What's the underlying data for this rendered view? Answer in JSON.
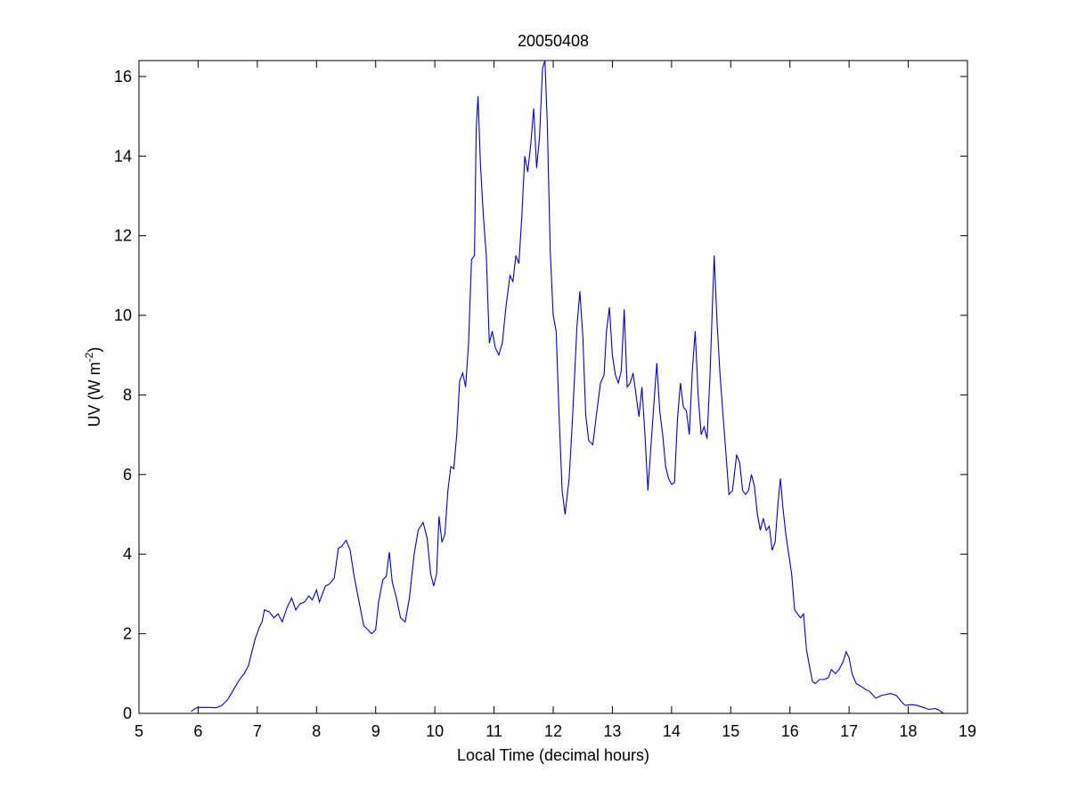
{
  "chart_data": {
    "type": "line",
    "title": "20050408",
    "xlabel": "Local Time (decimal hours)",
    "ylabel": {
      "main": "UV (W m",
      "superscript": "-2",
      "close": ")"
    },
    "xlim": [
      5,
      19
    ],
    "ylim": [
      0,
      16.4
    ],
    "xticks": [
      "5",
      "6",
      "7",
      "8",
      "9",
      "10",
      "11",
      "12",
      "13",
      "14",
      "15",
      "16",
      "17",
      "18",
      "19"
    ],
    "yticks": [
      "0",
      "2",
      "4",
      "6",
      "8",
      "10",
      "12",
      "14",
      "16"
    ],
    "grid": false,
    "legend": "none",
    "series": [
      {
        "color": "#0000cc",
        "points": [
          [
            5.88,
            0.05
          ],
          [
            5.95,
            0.12
          ],
          [
            6.0,
            0.15
          ],
          [
            6.1,
            0.15
          ],
          [
            6.2,
            0.15
          ],
          [
            6.3,
            0.14
          ],
          [
            6.4,
            0.2
          ],
          [
            6.5,
            0.35
          ],
          [
            6.6,
            0.6
          ],
          [
            6.7,
            0.85
          ],
          [
            6.78,
            1.0
          ],
          [
            6.85,
            1.2
          ],
          [
            6.9,
            1.5
          ],
          [
            6.97,
            1.9
          ],
          [
            7.03,
            2.15
          ],
          [
            7.08,
            2.3
          ],
          [
            7.12,
            2.6
          ],
          [
            7.2,
            2.55
          ],
          [
            7.28,
            2.4
          ],
          [
            7.35,
            2.5
          ],
          [
            7.42,
            2.3
          ],
          [
            7.5,
            2.65
          ],
          [
            7.58,
            2.9
          ],
          [
            7.65,
            2.6
          ],
          [
            7.72,
            2.75
          ],
          [
            7.8,
            2.8
          ],
          [
            7.87,
            2.95
          ],
          [
            7.93,
            2.85
          ],
          [
            8.0,
            3.1
          ],
          [
            8.05,
            2.8
          ],
          [
            8.1,
            3.0
          ],
          [
            8.15,
            3.2
          ],
          [
            8.22,
            3.25
          ],
          [
            8.3,
            3.4
          ],
          [
            8.37,
            4.15
          ],
          [
            8.43,
            4.2
          ],
          [
            8.5,
            4.35
          ],
          [
            8.57,
            4.1
          ],
          [
            8.63,
            3.5
          ],
          [
            8.72,
            2.8
          ],
          [
            8.8,
            2.2
          ],
          [
            8.87,
            2.1
          ],
          [
            8.93,
            2.0
          ],
          [
            9.0,
            2.1
          ],
          [
            9.05,
            2.8
          ],
          [
            9.12,
            3.35
          ],
          [
            9.18,
            3.45
          ],
          [
            9.23,
            4.05
          ],
          [
            9.28,
            3.3
          ],
          [
            9.35,
            2.9
          ],
          [
            9.42,
            2.4
          ],
          [
            9.5,
            2.3
          ],
          [
            9.57,
            2.9
          ],
          [
            9.65,
            4.0
          ],
          [
            9.72,
            4.6
          ],
          [
            9.8,
            4.8
          ],
          [
            9.87,
            4.4
          ],
          [
            9.93,
            3.5
          ],
          [
            9.98,
            3.2
          ],
          [
            10.03,
            3.5
          ],
          [
            10.07,
            4.95
          ],
          [
            10.12,
            4.3
          ],
          [
            10.17,
            4.5
          ],
          [
            10.22,
            5.6
          ],
          [
            10.27,
            6.2
          ],
          [
            10.32,
            6.15
          ],
          [
            10.37,
            7.0
          ],
          [
            10.42,
            8.35
          ],
          [
            10.47,
            8.55
          ],
          [
            10.52,
            8.2
          ],
          [
            10.57,
            9.3
          ],
          [
            10.62,
            11.4
          ],
          [
            10.67,
            11.5
          ],
          [
            10.7,
            14.7
          ],
          [
            10.73,
            15.5
          ],
          [
            10.77,
            13.8
          ],
          [
            10.82,
            12.5
          ],
          [
            10.87,
            11.5
          ],
          [
            10.92,
            9.3
          ],
          [
            10.97,
            9.6
          ],
          [
            11.02,
            9.2
          ],
          [
            11.08,
            9.0
          ],
          [
            11.14,
            9.3
          ],
          [
            11.2,
            10.2
          ],
          [
            11.27,
            11.0
          ],
          [
            11.32,
            10.85
          ],
          [
            11.37,
            11.5
          ],
          [
            11.42,
            11.3
          ],
          [
            11.47,
            12.5
          ],
          [
            11.52,
            14.0
          ],
          [
            11.57,
            13.6
          ],
          [
            11.62,
            14.3
          ],
          [
            11.67,
            15.2
          ],
          [
            11.72,
            13.7
          ],
          [
            11.77,
            14.5
          ],
          [
            11.82,
            16.2
          ],
          [
            11.86,
            16.4
          ],
          [
            11.9,
            14.8
          ],
          [
            11.95,
            11.6
          ],
          [
            12.0,
            10.0
          ],
          [
            12.05,
            9.6
          ],
          [
            12.1,
            7.5
          ],
          [
            12.15,
            5.6
          ],
          [
            12.2,
            5.0
          ],
          [
            12.27,
            5.9
          ],
          [
            12.33,
            7.5
          ],
          [
            12.4,
            9.7
          ],
          [
            12.45,
            10.6
          ],
          [
            12.5,
            9.5
          ],
          [
            12.55,
            7.5
          ],
          [
            12.6,
            6.85
          ],
          [
            12.67,
            6.75
          ],
          [
            12.73,
            7.5
          ],
          [
            12.8,
            8.3
          ],
          [
            12.86,
            8.5
          ],
          [
            12.9,
            9.6
          ],
          [
            12.95,
            10.2
          ],
          [
            13.0,
            9.0
          ],
          [
            13.05,
            8.5
          ],
          [
            13.1,
            8.3
          ],
          [
            13.15,
            8.6
          ],
          [
            13.2,
            10.15
          ],
          [
            13.25,
            8.2
          ],
          [
            13.3,
            8.3
          ],
          [
            13.35,
            8.55
          ],
          [
            13.4,
            8.0
          ],
          [
            13.45,
            7.45
          ],
          [
            13.5,
            8.2
          ],
          [
            13.55,
            7.0
          ],
          [
            13.6,
            5.6
          ],
          [
            13.67,
            7.1
          ],
          [
            13.75,
            8.8
          ],
          [
            13.8,
            7.6
          ],
          [
            13.85,
            7.0
          ],
          [
            13.9,
            6.2
          ],
          [
            13.95,
            5.9
          ],
          [
            14.0,
            5.75
          ],
          [
            14.05,
            5.8
          ],
          [
            14.1,
            7.4
          ],
          [
            14.15,
            8.3
          ],
          [
            14.2,
            7.7
          ],
          [
            14.25,
            7.6
          ],
          [
            14.3,
            7.0
          ],
          [
            14.35,
            8.6
          ],
          [
            14.4,
            9.6
          ],
          [
            14.45,
            8.0
          ],
          [
            14.5,
            7.0
          ],
          [
            14.55,
            7.2
          ],
          [
            14.6,
            6.9
          ],
          [
            14.65,
            8.5
          ],
          [
            14.72,
            11.5
          ],
          [
            14.77,
            9.8
          ],
          [
            14.82,
            8.5
          ],
          [
            14.87,
            7.5
          ],
          [
            14.92,
            6.5
          ],
          [
            14.97,
            5.5
          ],
          [
            15.03,
            5.6
          ],
          [
            15.1,
            6.5
          ],
          [
            15.15,
            6.3
          ],
          [
            15.2,
            5.6
          ],
          [
            15.25,
            5.5
          ],
          [
            15.3,
            5.6
          ],
          [
            15.35,
            6.0
          ],
          [
            15.4,
            5.7
          ],
          [
            15.45,
            5.0
          ],
          [
            15.5,
            4.6
          ],
          [
            15.55,
            4.9
          ],
          [
            15.6,
            4.6
          ],
          [
            15.65,
            4.7
          ],
          [
            15.7,
            4.1
          ],
          [
            15.75,
            4.3
          ],
          [
            15.8,
            5.3
          ],
          [
            15.84,
            5.9
          ],
          [
            15.88,
            5.2
          ],
          [
            15.93,
            4.5
          ],
          [
            15.98,
            4.0
          ],
          [
            16.03,
            3.5
          ],
          [
            16.08,
            2.6
          ],
          [
            16.13,
            2.5
          ],
          [
            16.18,
            2.4
          ],
          [
            16.23,
            2.5
          ],
          [
            16.28,
            1.6
          ],
          [
            16.33,
            1.2
          ],
          [
            16.38,
            0.8
          ],
          [
            16.43,
            0.75
          ],
          [
            16.5,
            0.85
          ],
          [
            16.58,
            0.85
          ],
          [
            16.65,
            0.9
          ],
          [
            16.7,
            1.1
          ],
          [
            16.77,
            1.0
          ],
          [
            16.83,
            1.1
          ],
          [
            16.9,
            1.3
          ],
          [
            16.95,
            1.55
          ],
          [
            17.0,
            1.4
          ],
          [
            17.05,
            1.0
          ],
          [
            17.12,
            0.75
          ],
          [
            17.2,
            0.68
          ],
          [
            17.28,
            0.6
          ],
          [
            17.35,
            0.55
          ],
          [
            17.45,
            0.38
          ],
          [
            17.55,
            0.45
          ],
          [
            17.7,
            0.5
          ],
          [
            17.8,
            0.45
          ],
          [
            17.88,
            0.3
          ],
          [
            17.95,
            0.2
          ],
          [
            18.05,
            0.22
          ],
          [
            18.15,
            0.2
          ],
          [
            18.25,
            0.15
          ],
          [
            18.35,
            0.1
          ],
          [
            18.45,
            0.12
          ],
          [
            18.5,
            0.1
          ],
          [
            18.55,
            0.05
          ],
          [
            18.6,
            0.0
          ]
        ]
      }
    ]
  }
}
